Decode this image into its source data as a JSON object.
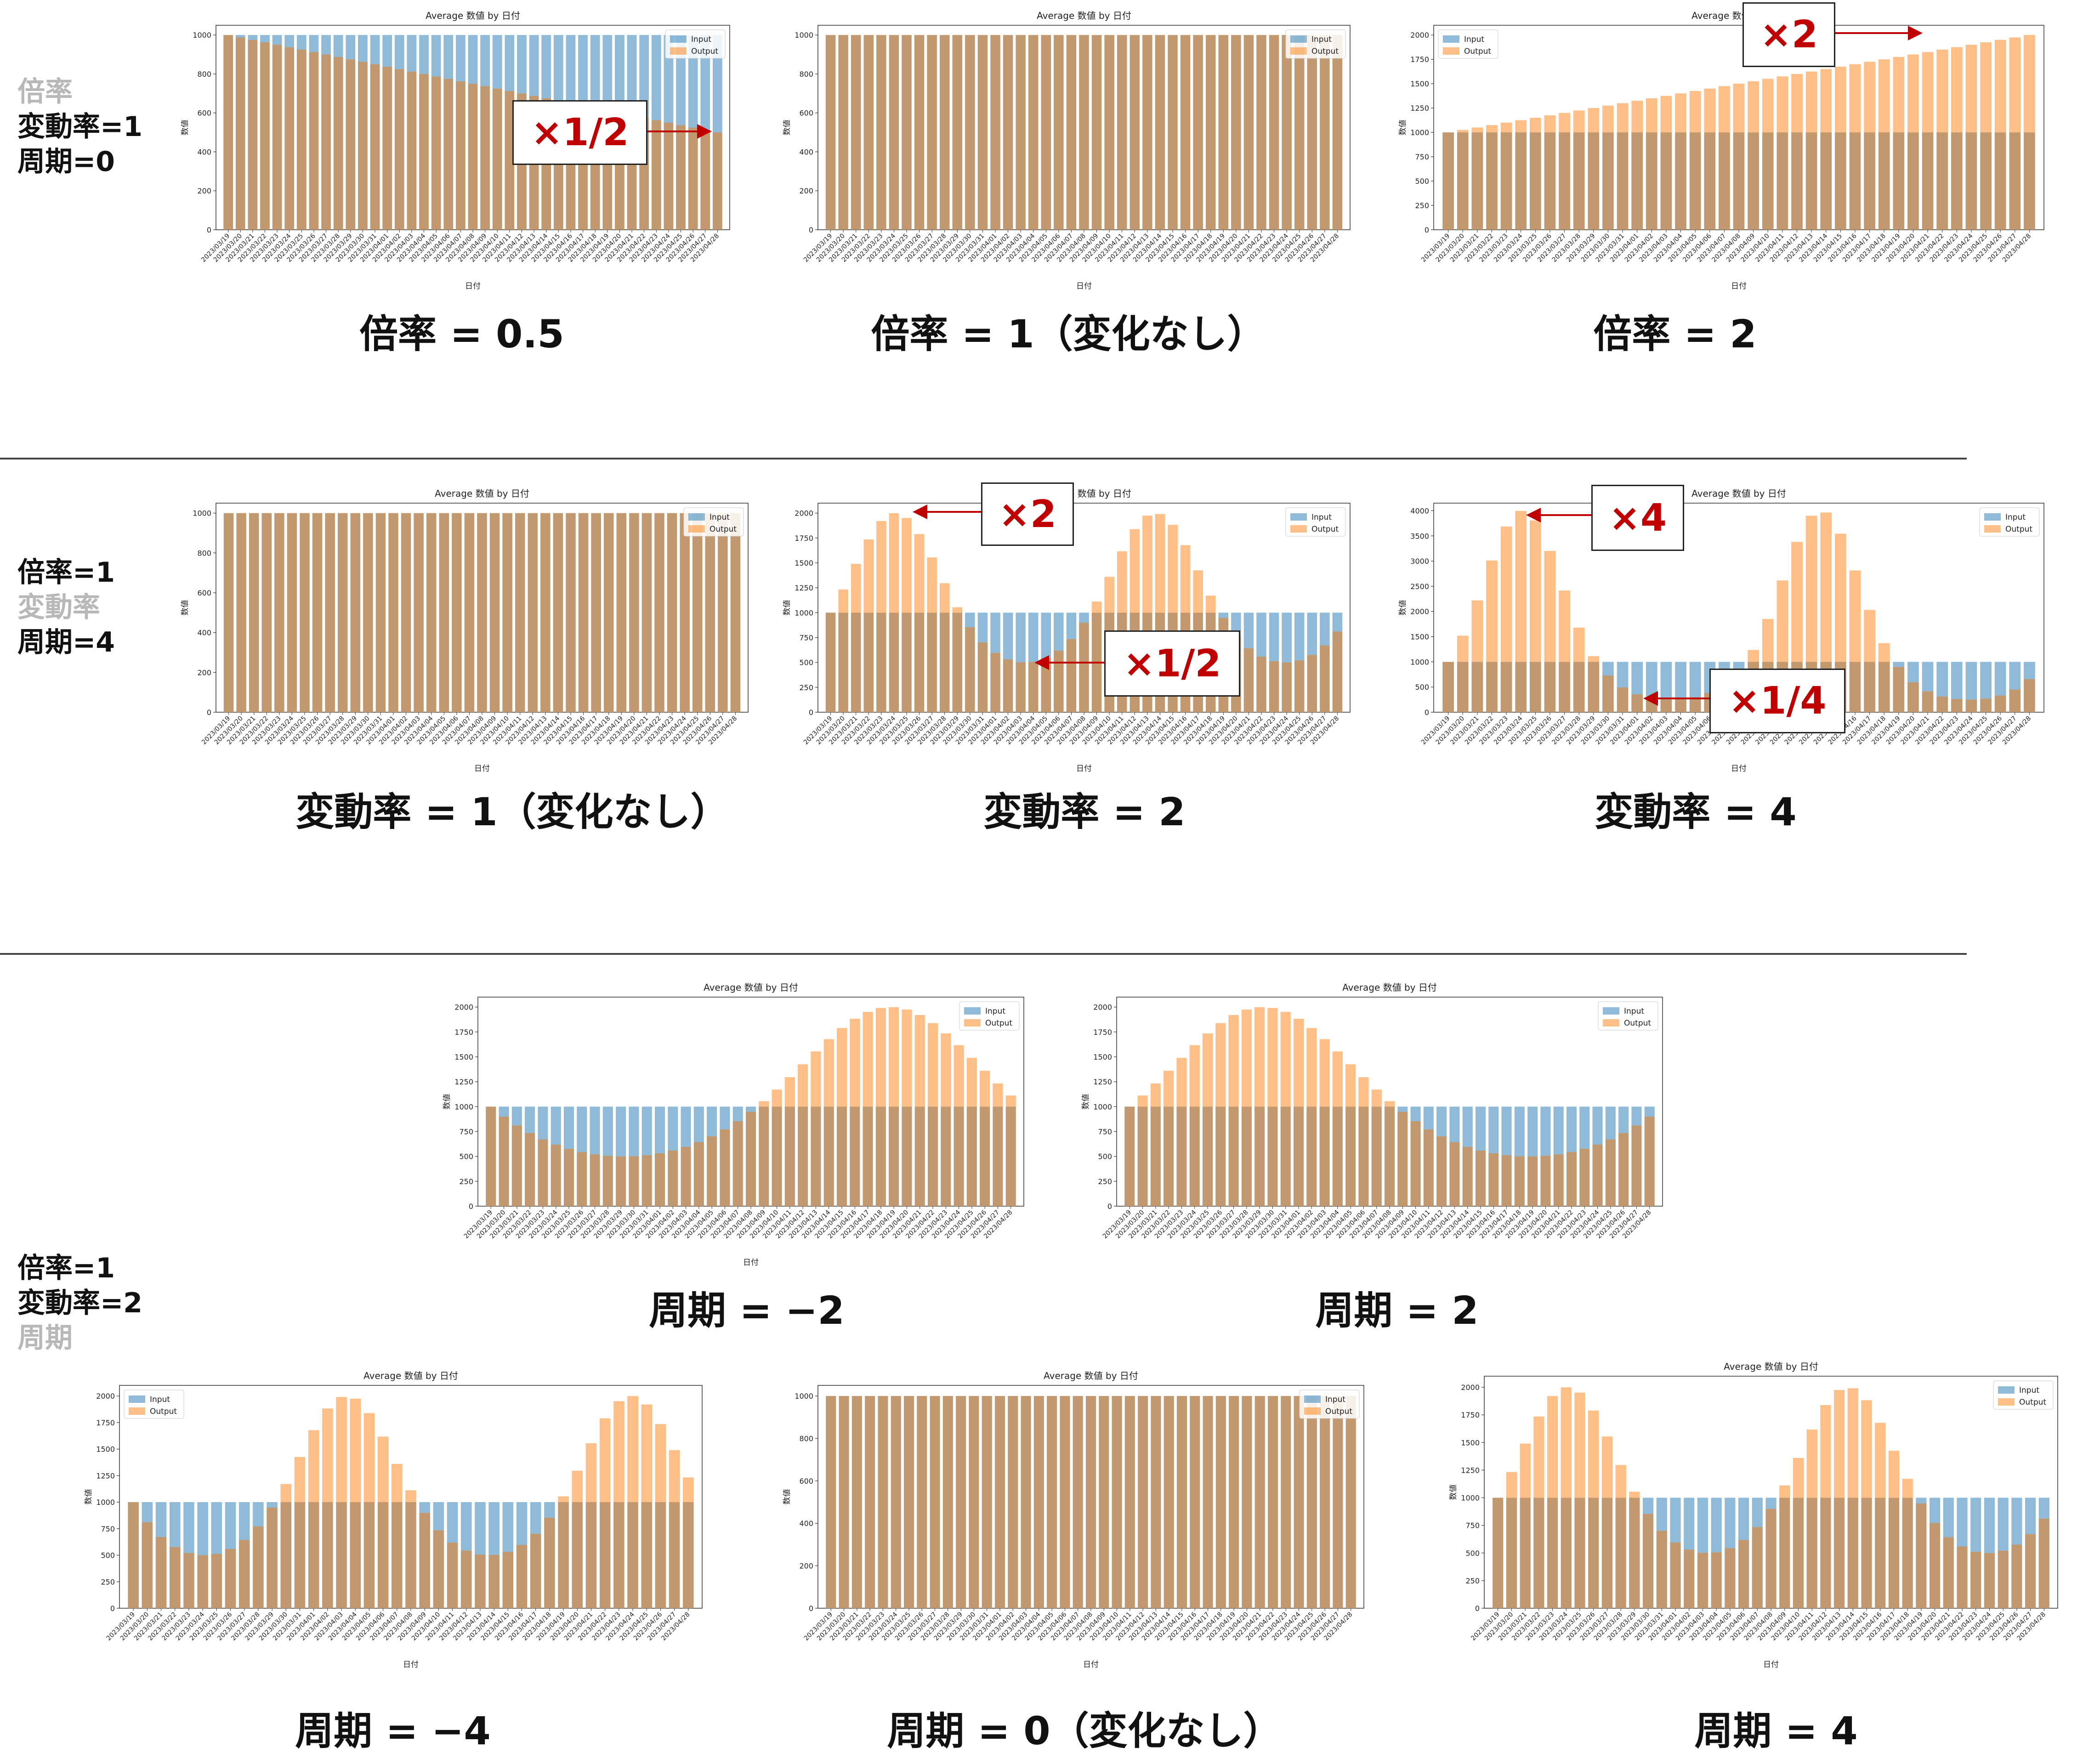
{
  "sections": [
    {
      "labels": [
        {
          "text": "倍率",
          "dim": true
        },
        {
          "text": "変動率=1",
          "dim": false
        },
        {
          "text": "周期=0",
          "dim": false
        }
      ]
    },
    {
      "labels": [
        {
          "text": "倍率=1",
          "dim": false
        },
        {
          "text": "変動率",
          "dim": true
        },
        {
          "text": "周期=4",
          "dim": false
        }
      ]
    },
    {
      "labels": [
        {
          "text": "倍率=1",
          "dim": false
        },
        {
          "text": "変動率=2",
          "dim": false
        },
        {
          "text": "周期",
          "dim": true
        }
      ]
    }
  ],
  "captions": [
    "倍率 = 0.5",
    "倍率 = 1（変化なし）",
    "倍率 = 2",
    "変動率 = 1（変化なし）",
    "変動率 = 2",
    "変動率 = 4",
    "周期 = −2",
    "周期 = 2",
    "周期 = −4",
    "周期 = 0（変化なし）",
    "周期 = 4"
  ],
  "callouts": [
    "×1/2",
    "×2",
    "×2",
    "×1/2",
    "×4",
    "×1/4"
  ],
  "colors": {
    "input": "#1f77b4",
    "output": "#ff7f0e",
    "overlap": "#c2996e",
    "callout_text": "#c00000",
    "arrow": "#c00000"
  },
  "chart_data": [
    {
      "type": "bar",
      "title": "Average 数値 by 日付",
      "xlabel": "日付",
      "ylabel": "数値",
      "legend": "top-right",
      "ylim": [
        0,
        1050
      ],
      "yticks": [
        0,
        200,
        400,
        600,
        800,
        1000
      ],
      "category_range": [
        "2023/03/19",
        "2023/04/28"
      ],
      "label_every": 1,
      "series": [
        {
          "name": "Input",
          "values": {
            "constant": 1000
          }
        },
        {
          "name": "Output",
          "values": {
            "start": 1000,
            "end": 500,
            "shape": "linear"
          }
        }
      ]
    },
    {
      "type": "bar",
      "title": "Average 数値 by 日付",
      "xlabel": "日付",
      "ylabel": "数値",
      "legend": "top-right",
      "ylim": [
        0,
        1050
      ],
      "yticks": [
        0,
        200,
        400,
        600,
        800,
        1000
      ],
      "category_range": [
        "2023/03/19",
        "2023/04/28"
      ],
      "label_every": 1,
      "series": [
        {
          "name": "Input",
          "values": {
            "constant": 1000
          }
        },
        {
          "name": "Output",
          "values": {
            "constant": 1000
          }
        }
      ]
    },
    {
      "type": "bar",
      "title": "Average 数値 by 日付",
      "xlabel": "日付",
      "ylabel": "数値",
      "legend": "top-left",
      "ylim": [
        0,
        2100
      ],
      "yticks": [
        0,
        250,
        500,
        750,
        1000,
        1250,
        1500,
        1750,
        2000
      ],
      "category_range": [
        "2023/03/19",
        "2023/04/28"
      ],
      "label_every": 1,
      "series": [
        {
          "name": "Input",
          "values": {
            "constant": 1000
          }
        },
        {
          "name": "Output",
          "values": {
            "start": 1000,
            "end": 2000,
            "shape": "linear"
          }
        }
      ]
    },
    {
      "type": "bar",
      "title": "Average 数値 by 日付",
      "xlabel": "日付",
      "ylabel": "数値",
      "legend": "top-right",
      "ylim": [
        0,
        1050
      ],
      "yticks": [
        0,
        200,
        400,
        600,
        800,
        1000
      ],
      "category_range": [
        "2023/03/19",
        "2023/04/28"
      ],
      "label_every": 1,
      "series": [
        {
          "name": "Input",
          "values": {
            "constant": 1000
          }
        },
        {
          "name": "Output",
          "values": {
            "constant": 1000
          }
        }
      ]
    },
    {
      "type": "bar",
      "title": "Average 数値 by 日付",
      "xlabel": "日付",
      "ylabel": "数値",
      "legend": "top-right",
      "ylim": [
        0,
        2100
      ],
      "yticks": [
        0,
        250,
        500,
        750,
        1000,
        1250,
        1500,
        1750,
        2000
      ],
      "category_range": [
        "2023/03/19",
        "2023/04/28"
      ],
      "label_every": 1,
      "series": [
        {
          "name": "Input",
          "values": {
            "constant": 1000
          }
        },
        {
          "name": "Output",
          "values": {
            "base": 1000,
            "factor": 2,
            "cycles": 2,
            "phase": 0,
            "shape": "sine-multiplicative"
          }
        }
      ]
    },
    {
      "type": "bar",
      "title": "Average 数値 by 日付",
      "xlabel": "日付",
      "ylabel": "数値",
      "legend": "top-right",
      "ylim": [
        0,
        4150
      ],
      "yticks": [
        0,
        500,
        1000,
        1500,
        2000,
        2500,
        3000,
        3500,
        4000
      ],
      "category_range": [
        "2023/03/19",
        "2023/04/28"
      ],
      "label_every": 1,
      "series": [
        {
          "name": "Input",
          "values": {
            "constant": 1000
          }
        },
        {
          "name": "Output",
          "values": {
            "base": 1000,
            "factor": 4,
            "cycles": 2,
            "phase": 0,
            "shape": "sine-multiplicative"
          }
        }
      ]
    },
    {
      "type": "bar",
      "title": "Average 数値 by 日付",
      "xlabel": "日付",
      "ylabel": "数値",
      "legend": "top-right",
      "ylim": [
        0,
        2100
      ],
      "yticks": [
        0,
        250,
        500,
        750,
        1000,
        1250,
        1500,
        1750,
        2000
      ],
      "category_range": [
        "2023/03/19",
        "2023/04/28"
      ],
      "label_every": 1,
      "series": [
        {
          "name": "Input",
          "values": {
            "constant": 1000
          }
        },
        {
          "name": "Output",
          "values": {
            "base": 1000,
            "factor": 2,
            "cycles": 1,
            "phase": 180,
            "shape": "sine-multiplicative"
          }
        }
      ]
    },
    {
      "type": "bar",
      "title": "Average 数値 by 日付",
      "xlabel": "",
      "ylabel": "数値",
      "legend": "top-right",
      "ylim": [
        0,
        2100
      ],
      "yticks": [
        0,
        250,
        500,
        750,
        1000,
        1250,
        1500,
        1750,
        2000
      ],
      "category_range": [
        "2023/03/19",
        "2023/04/28"
      ],
      "label_every": 1,
      "series": [
        {
          "name": "Input",
          "values": {
            "constant": 1000
          }
        },
        {
          "name": "Output",
          "values": {
            "base": 1000,
            "factor": 2,
            "cycles": 1,
            "phase": 0,
            "shape": "sine-multiplicative"
          }
        }
      ]
    },
    {
      "type": "bar",
      "title": "Average 数値 by 日付",
      "xlabel": "日付",
      "ylabel": "数値",
      "legend": "top-left",
      "ylim": [
        0,
        2100
      ],
      "yticks": [
        0,
        250,
        500,
        750,
        1000,
        1250,
        1500,
        1750,
        2000
      ],
      "category_range": [
        "2023/03/19",
        "2023/04/28"
      ],
      "label_every": 1,
      "series": [
        {
          "name": "Input",
          "values": {
            "constant": 1000
          }
        },
        {
          "name": "Output",
          "values": {
            "base": 1000,
            "factor": 2,
            "cycles": 2,
            "phase": 180,
            "shape": "sine-multiplicative"
          }
        }
      ]
    },
    {
      "type": "bar",
      "title": "Average 数値 by 日付",
      "xlabel": "日付",
      "ylabel": "数値",
      "legend": "top-right",
      "ylim": [
        0,
        1050
      ],
      "yticks": [
        0,
        200,
        400,
        600,
        800,
        1000
      ],
      "category_range": [
        "2023/03/19",
        "2023/04/28"
      ],
      "label_every": 1,
      "series": [
        {
          "name": "Input",
          "values": {
            "constant": 1000
          }
        },
        {
          "name": "Output",
          "values": {
            "constant": 1000
          }
        }
      ]
    },
    {
      "type": "bar",
      "title": "Average 数値 by 日付",
      "xlabel": "日付",
      "ylabel": "数値",
      "legend": "top-right",
      "ylim": [
        0,
        2100
      ],
      "yticks": [
        0,
        250,
        500,
        750,
        1000,
        1250,
        1500,
        1750,
        2000
      ],
      "category_range": [
        "2023/03/19",
        "2023/04/28"
      ],
      "label_every": 1,
      "series": [
        {
          "name": "Input",
          "values": {
            "constant": 1000
          }
        },
        {
          "name": "Output",
          "values": {
            "base": 1000,
            "factor": 2,
            "cycles": 2,
            "phase": 0,
            "shape": "sine-multiplicative"
          }
        }
      ]
    }
  ]
}
